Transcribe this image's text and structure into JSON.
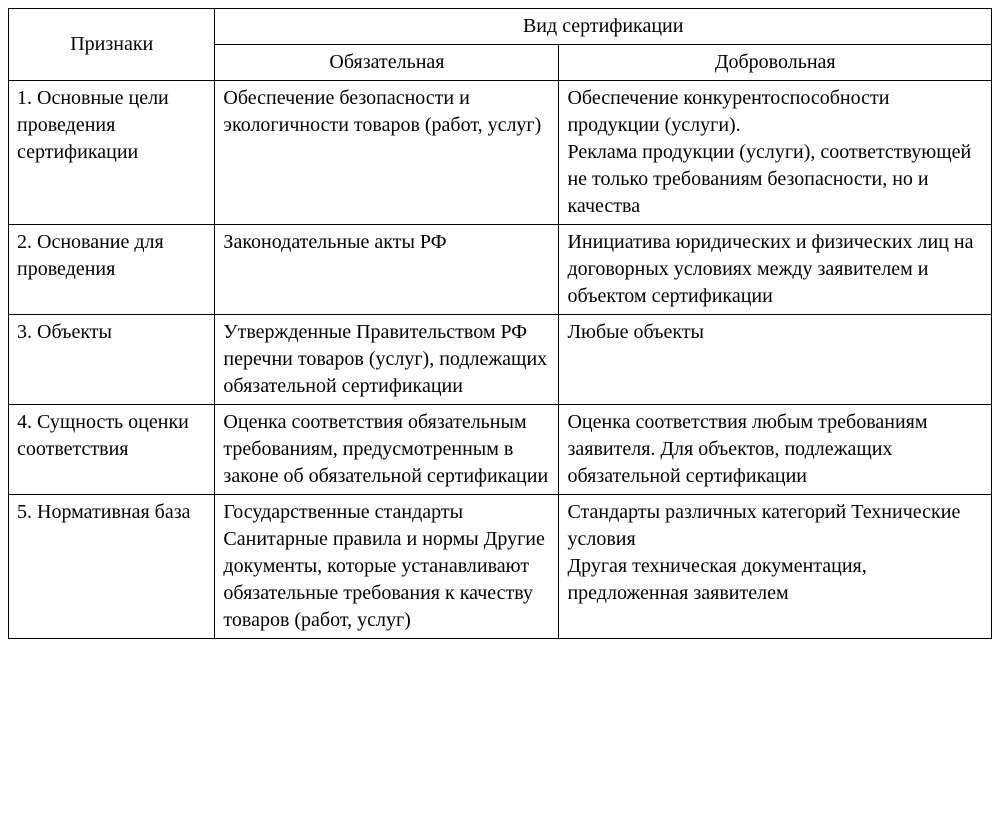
{
  "type": "table",
  "background_color": "#ffffff",
  "text_color": "#000000",
  "border_color": "#000000",
  "font_family": "Times New Roman",
  "font_size_pt": 15,
  "columns": {
    "attr_width_pct": 21,
    "mandatory_width_pct": 35,
    "voluntary_width_pct": 44
  },
  "header": {
    "attributes": "Признаки",
    "cert_type": "Вид сертификации",
    "mandatory": "Обязательная",
    "voluntary": "Добровольная"
  },
  "rows": [
    {
      "attribute": "1. Основные цели проведения сертификации",
      "mandatory": "Обеспечение безопасности и экологичности товаров (работ, услуг)",
      "voluntary": "Обеспечение конкурентоспособности продукции (услуги).\nРеклама продукции (услуги), соответствующей не только требованиям безопасности, но и качества"
    },
    {
      "attribute": "2. Основание для проведения",
      "mandatory": "Законодательные акты РФ",
      "voluntary": "Инициатива юридических и физических лиц на договорных условиях между заявителем и объектом сертификации"
    },
    {
      "attribute": "3. Объекты",
      "mandatory": "Утвержденные Правительством РФ перечни товаров (услуг), подлежащих обязательной сертификации",
      "voluntary": "Любые объекты"
    },
    {
      "attribute": "4. Сущность оценки соответствия",
      "mandatory": "Оценка соответствия обязательным требованиям, предусмотренным в законе об обязательной сертификации",
      "voluntary": "Оценка соответствия любым требованиям заявителя. Для объектов, подлежащих обязательной сертификации"
    },
    {
      "attribute": "5. Нормативная база",
      "mandatory": "Государственные стандарты Санитарные правила и нормы Другие документы, которые устанавливают обязательные требования к качеству товаров (работ, услуг)",
      "voluntary": "Стандарты различных категорий Технические условия\nДругая техническая документация, предложенная заявителем"
    }
  ]
}
